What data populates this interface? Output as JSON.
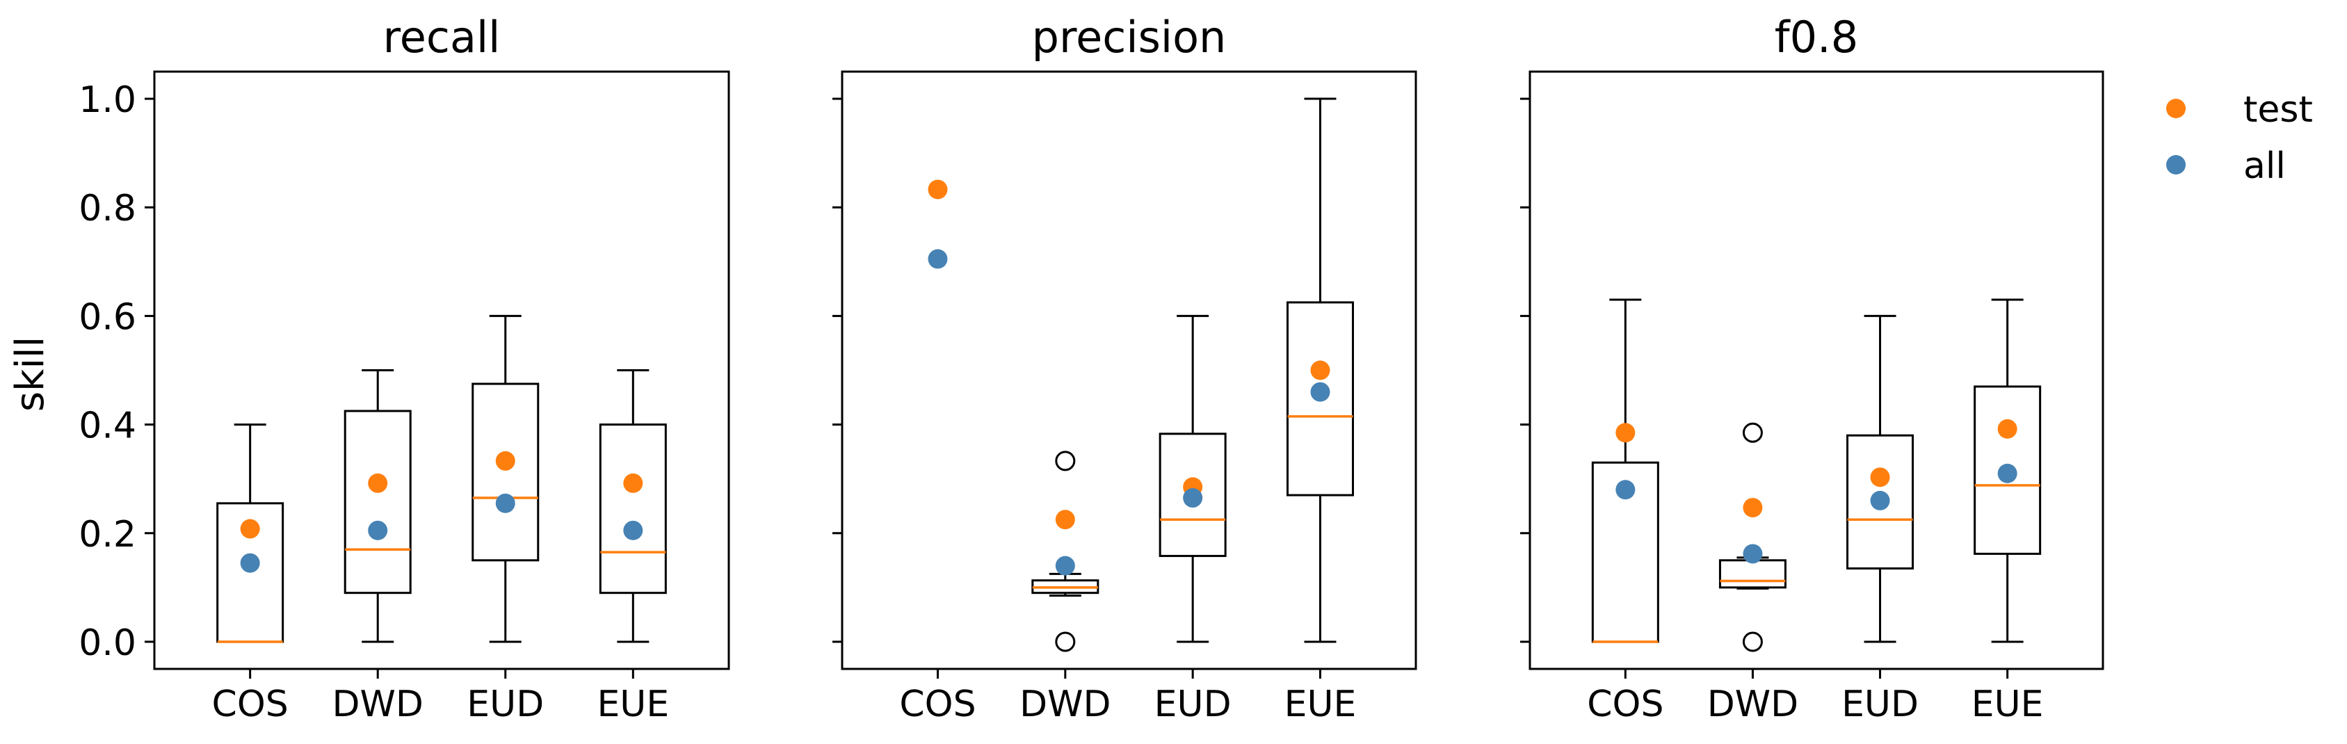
{
  "chart_data": {
    "type": "box",
    "ylabel": "skill",
    "ylim": [
      -0.05,
      1.05
    ],
    "yticks": [
      0.0,
      0.2,
      0.4,
      0.6,
      0.8,
      1.0
    ],
    "ytick_labels": [
      "0.0",
      "0.2",
      "0.4",
      "0.6",
      "0.8",
      "1.0"
    ],
    "categories": [
      "COS",
      "DWD",
      "EUD",
      "EUE"
    ],
    "legend": {
      "placement": "right",
      "entries": [
        {
          "name": "test",
          "color": "#ff7f0e"
        },
        {
          "name": "all",
          "color": "#4682b4"
        }
      ]
    },
    "colors": {
      "median": "#ff7f0e",
      "test": "#ff7f0e",
      "all": "#4682b4",
      "box": "#000000"
    },
    "panels": [
      {
        "title": "recall",
        "boxes": [
          {
            "category": "COS",
            "whisker_low": 0.0,
            "q1": 0.0,
            "median": 0.0,
            "q3": 0.255,
            "whisker_high": 0.4,
            "outliers": [],
            "test": 0.208,
            "all": 0.145
          },
          {
            "category": "DWD",
            "whisker_low": 0.0,
            "q1": 0.09,
            "median": 0.17,
            "q3": 0.425,
            "whisker_high": 0.5,
            "outliers": [],
            "test": 0.292,
            "all": 0.205
          },
          {
            "category": "EUD",
            "whisker_low": 0.0,
            "q1": 0.15,
            "median": 0.265,
            "q3": 0.475,
            "whisker_high": 0.6,
            "outliers": [],
            "test": 0.333,
            "all": 0.255
          },
          {
            "category": "EUE",
            "whisker_low": 0.0,
            "q1": 0.09,
            "median": 0.165,
            "q3": 0.4,
            "whisker_high": 0.5,
            "outliers": [],
            "test": 0.292,
            "all": 0.205
          }
        ]
      },
      {
        "title": "precision",
        "boxes": [
          {
            "category": "COS",
            "whisker_low": null,
            "q1": null,
            "median": null,
            "q3": null,
            "whisker_high": null,
            "outliers": [],
            "test": 0.833,
            "all": 0.705
          },
          {
            "category": "DWD",
            "whisker_low": 0.085,
            "q1": 0.09,
            "median": 0.1,
            "q3": 0.113,
            "whisker_high": 0.125,
            "outliers": [
              0.333,
              0.0
            ],
            "test": 0.225,
            "all": 0.14
          },
          {
            "category": "EUD",
            "whisker_low": 0.0,
            "q1": 0.158,
            "median": 0.225,
            "q3": 0.383,
            "whisker_high": 0.6,
            "outliers": [],
            "test": 0.285,
            "all": 0.265
          },
          {
            "category": "EUE",
            "whisker_low": 0.0,
            "q1": 0.27,
            "median": 0.415,
            "q3": 0.625,
            "whisker_high": 1.0,
            "outliers": [],
            "test": 0.5,
            "all": 0.46
          }
        ]
      },
      {
        "title": "f0.8",
        "boxes": [
          {
            "category": "COS",
            "whisker_low": 0.0,
            "q1": 0.0,
            "median": 0.0,
            "q3": 0.33,
            "whisker_high": 0.63,
            "outliers": [],
            "test": 0.385,
            "all": 0.28
          },
          {
            "category": "DWD",
            "whisker_low": 0.098,
            "q1": 0.1,
            "median": 0.112,
            "q3": 0.15,
            "whisker_high": 0.155,
            "outliers": [
              0.385,
              0.0
            ],
            "test": 0.247,
            "all": 0.162
          },
          {
            "category": "EUD",
            "whisker_low": 0.0,
            "q1": 0.135,
            "median": 0.225,
            "q3": 0.38,
            "whisker_high": 0.6,
            "outliers": [],
            "test": 0.303,
            "all": 0.26
          },
          {
            "category": "EUE",
            "whisker_low": 0.0,
            "q1": 0.162,
            "median": 0.288,
            "q3": 0.47,
            "whisker_high": 0.63,
            "outliers": [],
            "test": 0.392,
            "all": 0.31
          }
        ]
      }
    ]
  }
}
